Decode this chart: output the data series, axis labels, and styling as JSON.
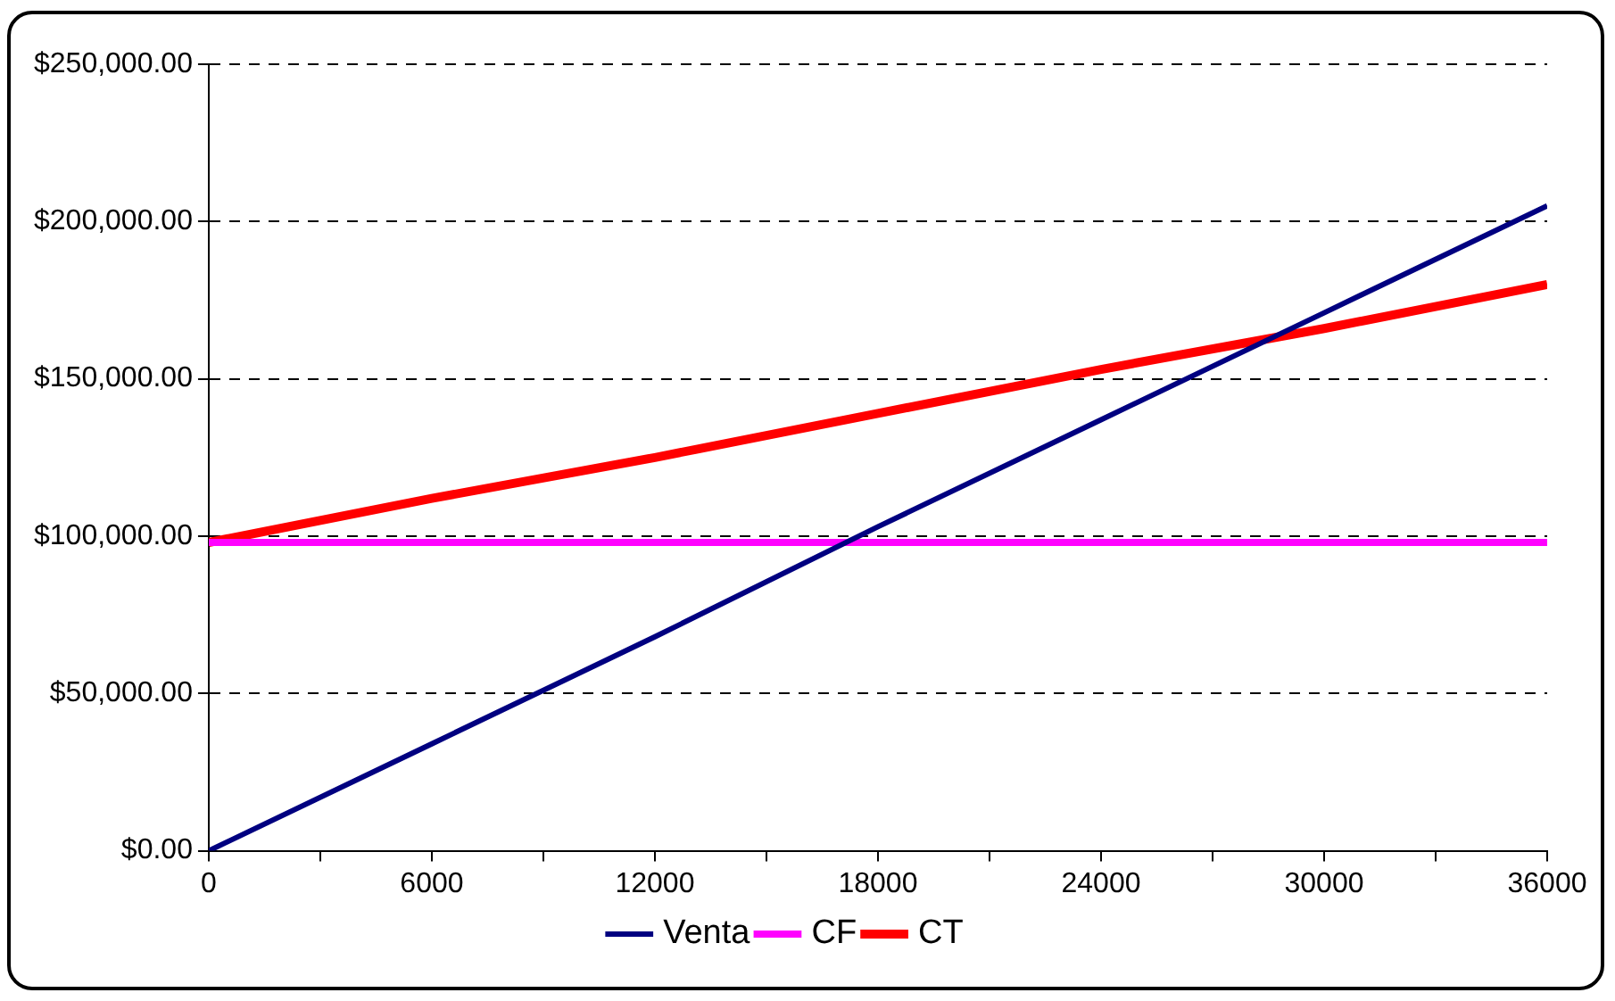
{
  "chart_data": {
    "type": "line",
    "x": [
      0,
      6000,
      12000,
      18000,
      24000,
      30000,
      36000
    ],
    "series": [
      {
        "name": "Venta",
        "color": "#000080",
        "values": [
          0,
          34000,
          68000,
          103000,
          137000,
          171000,
          205000
        ]
      },
      {
        "name": "CF",
        "color": "#ff00ff",
        "values": [
          98000,
          98000,
          98000,
          98000,
          98000,
          98000,
          98000
        ]
      },
      {
        "name": "CT",
        "color": "#ff0000",
        "values": [
          98000,
          112000,
          125000,
          139000,
          153000,
          166000,
          180000
        ]
      }
    ],
    "xlim": [
      0,
      36000
    ],
    "xticks": [
      0,
      {
        "value": 3000,
        "label": null
      },
      6000,
      {
        "value": 9000,
        "label": null
      },
      12000,
      {
        "value": 15000,
        "label": null
      },
      18000,
      {
        "value": 21000,
        "label": null
      },
      24000,
      {
        "value": 27000,
        "label": null
      },
      30000,
      {
        "value": 33000,
        "label": null
      },
      36000
    ],
    "ylim": [
      0,
      250000
    ],
    "yticks": [
      {
        "value": 0,
        "label": "$0.00"
      },
      {
        "value": 50000,
        "label": "$50,000.00"
      },
      {
        "value": 100000,
        "label": "$100,000.00"
      },
      {
        "value": 150000,
        "label": "$150,000.00"
      },
      {
        "value": 200000,
        "label": "$200,000.00"
      },
      {
        "value": 250000,
        "label": "$250,000.00"
      }
    ],
    "grid": "y",
    "legend": "bottom",
    "marker": "none",
    "line_style": "solid"
  }
}
